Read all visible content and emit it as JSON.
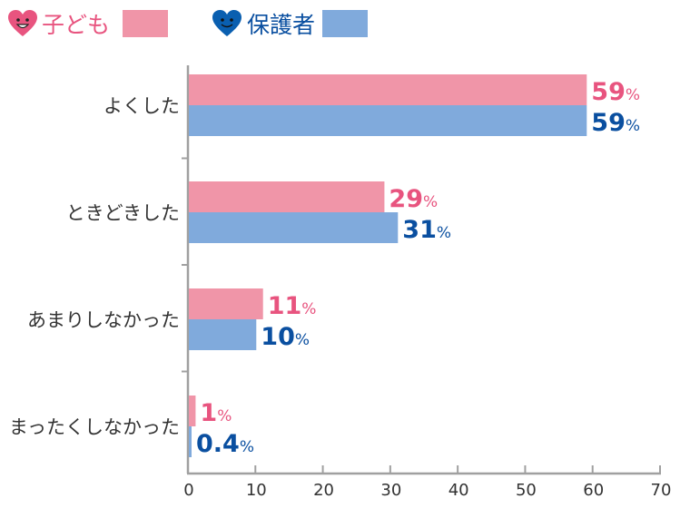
{
  "chart_data": {
    "type": "bar",
    "orientation": "horizontal",
    "categories": [
      "よくした",
      "ときどきした",
      "あまりしなかった",
      "まったくしなかった"
    ],
    "series": [
      {
        "name": "子ども",
        "values": [
          59,
          29,
          11,
          1
        ],
        "labels": [
          "59",
          "29",
          "11",
          "1"
        ],
        "color": "#f095a8",
        "label_color": "#e8547f",
        "icon": "smiling-heart-pink-icon"
      },
      {
        "name": "保護者",
        "values": [
          59,
          31,
          10,
          0.4
        ],
        "labels": [
          "59",
          "31",
          "10",
          "0.4"
        ],
        "color": "#80aadc",
        "label_color": "#0a4fa0",
        "icon": "smiling-heart-blue-icon"
      }
    ],
    "unit": "%",
    "xlim": [
      0,
      70
    ],
    "xticks": [
      0,
      10,
      20,
      30,
      40,
      50,
      60,
      70
    ],
    "grid": false,
    "legend": "top-left",
    "axis_color": "#a0a0a0"
  }
}
